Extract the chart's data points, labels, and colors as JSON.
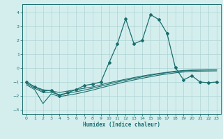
{
  "x": [
    0,
    1,
    2,
    3,
    4,
    5,
    6,
    7,
    8,
    9,
    10,
    11,
    12,
    13,
    14,
    15,
    16,
    17,
    18,
    19,
    20,
    21,
    22,
    23
  ],
  "smooth1": [
    -1.0,
    -1.35,
    -1.55,
    -1.65,
    -1.75,
    -1.65,
    -1.55,
    -1.45,
    -1.35,
    -1.2,
    -1.05,
    -0.92,
    -0.8,
    -0.68,
    -0.57,
    -0.47,
    -0.38,
    -0.3,
    -0.22,
    -0.17,
    -0.14,
    -0.13,
    -0.12,
    -0.12
  ],
  "smooth2": [
    -1.1,
    -1.45,
    -1.75,
    -1.75,
    -1.9,
    -1.8,
    -1.7,
    -1.58,
    -1.45,
    -1.3,
    -1.15,
    -1.0,
    -0.87,
    -0.75,
    -0.63,
    -0.52,
    -0.42,
    -0.33,
    -0.26,
    -0.2,
    -0.17,
    -0.15,
    -0.14,
    -0.13
  ],
  "smooth3": [
    -1.2,
    -1.55,
    -2.55,
    -1.85,
    -2.05,
    -1.95,
    -1.85,
    -1.72,
    -1.58,
    -1.42,
    -1.27,
    -1.12,
    -0.98,
    -0.85,
    -0.73,
    -0.62,
    -0.51,
    -0.42,
    -0.34,
    -0.28,
    -0.24,
    -0.22,
    -0.21,
    -0.2
  ],
  "main_x": [
    0,
    1,
    2,
    3,
    4,
    5,
    6,
    7,
    8,
    9,
    10,
    11,
    12,
    13,
    14,
    15,
    16,
    17,
    18,
    19,
    20,
    21,
    22,
    23
  ],
  "main_y": [
    -1.0,
    -1.35,
    -1.65,
    -1.6,
    -2.0,
    -1.75,
    -1.55,
    -1.25,
    -1.15,
    -1.0,
    0.4,
    1.75,
    3.55,
    1.75,
    2.0,
    3.85,
    3.5,
    2.5,
    0.05,
    -0.85,
    -0.55,
    -1.0,
    -1.05,
    -1.0
  ],
  "bg_color": "#d4eeee",
  "grid_color": "#aed4d4",
  "line_color": "#1a6e6e",
  "xlim": [
    -0.5,
    23.5
  ],
  "ylim": [
    -3.3,
    4.6
  ],
  "yticks": [
    -3,
    -2,
    -1,
    0,
    1,
    2,
    3,
    4
  ],
  "xticks": [
    0,
    1,
    2,
    3,
    4,
    5,
    6,
    7,
    8,
    9,
    10,
    11,
    12,
    13,
    14,
    15,
    16,
    17,
    18,
    19,
    20,
    21,
    22,
    23
  ],
  "xlabel": "Humidex (Indice chaleur)",
  "marker": "D",
  "markersize": 2.0,
  "linewidth_main": 0.9,
  "linewidth_smooth": 0.8
}
